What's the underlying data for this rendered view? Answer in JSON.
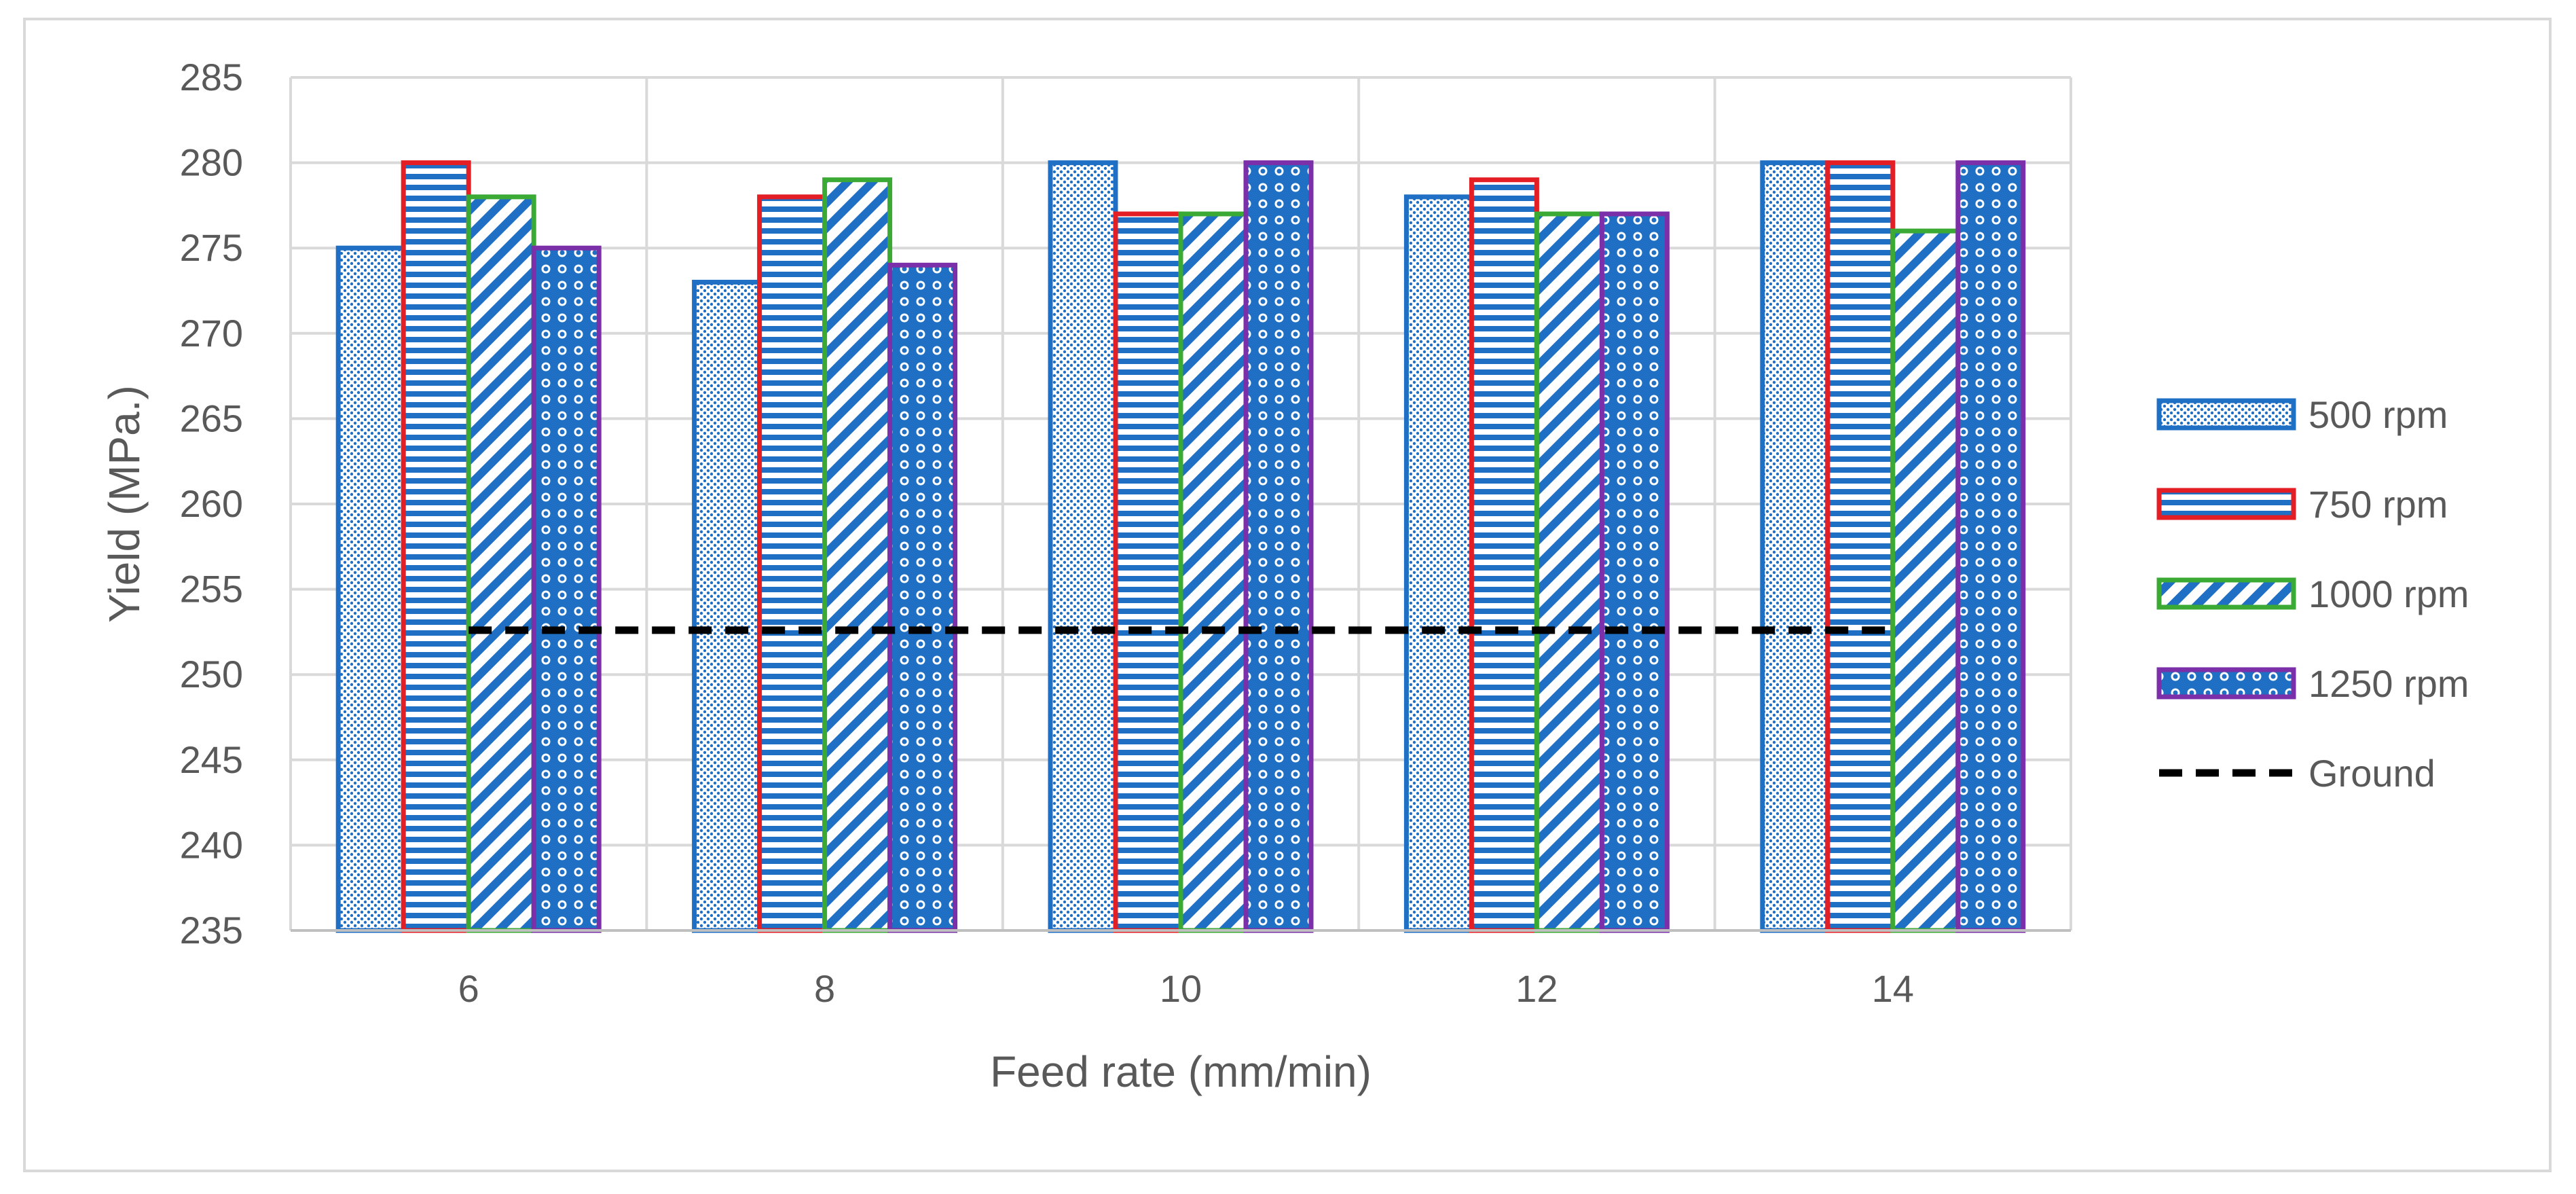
{
  "chart_data": {
    "type": "bar",
    "title": "",
    "xlabel": "Feed rate (mm/min)",
    "ylabel": "Yield (MPa.)",
    "ylim": [
      235,
      285
    ],
    "ytick_step": 5,
    "grid": true,
    "legend_position": "right",
    "categories": [
      "6",
      "8",
      "10",
      "12",
      "14"
    ],
    "series": [
      {
        "name": "500 rpm",
        "values": [
          275,
          273,
          280,
          278,
          280
        ],
        "color": "#1f6fc5",
        "pattern": "dots"
      },
      {
        "name": "750 rpm",
        "values": [
          280,
          278,
          277,
          279,
          280
        ],
        "color": "#e31e24",
        "pattern": "horizontal-stripes"
      },
      {
        "name": "1000 rpm",
        "values": [
          278,
          279,
          277,
          277,
          276
        ],
        "color": "#3aaa35",
        "pattern": "diagonal-stripes"
      },
      {
        "name": "1250 rpm",
        "values": [
          275,
          274,
          280,
          277,
          280
        ],
        "color": "#7b2fa8",
        "pattern": "circles"
      }
    ],
    "reference_line": {
      "name": "Ground",
      "value": 252.6,
      "color": "#000000",
      "style": "dashed"
    }
  }
}
